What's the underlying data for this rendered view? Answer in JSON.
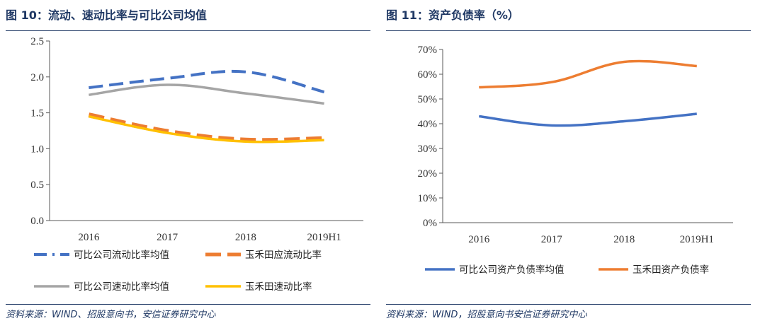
{
  "figures": [
    {
      "title": "图 10：流动、速动比率与可比公司均值",
      "source": "资料来源：WIND、招股意向书，安信证券研究中心"
    },
    {
      "title": "图 11：资产负债率（%）",
      "source": "资料来源：WIND，招股意向书安信证券研究中心"
    }
  ],
  "chart_data": [
    {
      "type": "line",
      "title": "图 10：流动、速动比率与可比公司均值",
      "categories": [
        "2016",
        "2017",
        "2018",
        "2019H1"
      ],
      "ylim": [
        0,
        2.5
      ],
      "yticks": [
        "0.0",
        "0.5",
        "1.0",
        "1.5",
        "2.0",
        "2.5"
      ],
      "ytick_values": [
        0,
        0.5,
        1.0,
        1.5,
        2.0,
        2.5
      ],
      "grid": false,
      "legend_position": "bottom",
      "series": [
        {
          "name": "可比公司流动比率均值",
          "values": [
            1.85,
            1.98,
            2.07,
            1.79
          ],
          "color": "#4472c4",
          "style": "dashed"
        },
        {
          "name": "玉禾田应流动比率",
          "values": [
            1.47,
            1.24,
            1.12,
            1.14
          ],
          "color": "#ed7d31",
          "style": "thick-dashed"
        },
        {
          "name": "可比公司速动比率均值",
          "values": [
            1.75,
            1.89,
            1.77,
            1.63
          ],
          "color": "#a5a5a5",
          "style": "solid"
        },
        {
          "name": "玉禾田速动比率",
          "values": [
            1.45,
            1.22,
            1.1,
            1.12
          ],
          "color": "#ffc000",
          "style": "solid"
        }
      ]
    },
    {
      "type": "line",
      "title": "图 11：资产负债率（%）",
      "categories": [
        "2016",
        "2017",
        "2018",
        "2019H1"
      ],
      "ylim": [
        0,
        70
      ],
      "yticks": [
        "0%",
        "10%",
        "20%",
        "30%",
        "40%",
        "50%",
        "60%",
        "70%"
      ],
      "ytick_values": [
        0,
        10,
        20,
        30,
        40,
        50,
        60,
        70
      ],
      "grid": false,
      "legend_position": "bottom",
      "series": [
        {
          "name": "可比公司资产负债率均值",
          "values": [
            43.0,
            39.3,
            41.0,
            44.0
          ],
          "color": "#4472c4",
          "style": "solid"
        },
        {
          "name": "玉禾田资产负债率",
          "values": [
            54.7,
            56.8,
            65.0,
            63.3
          ],
          "color": "#ed7d31",
          "style": "solid"
        }
      ]
    }
  ]
}
